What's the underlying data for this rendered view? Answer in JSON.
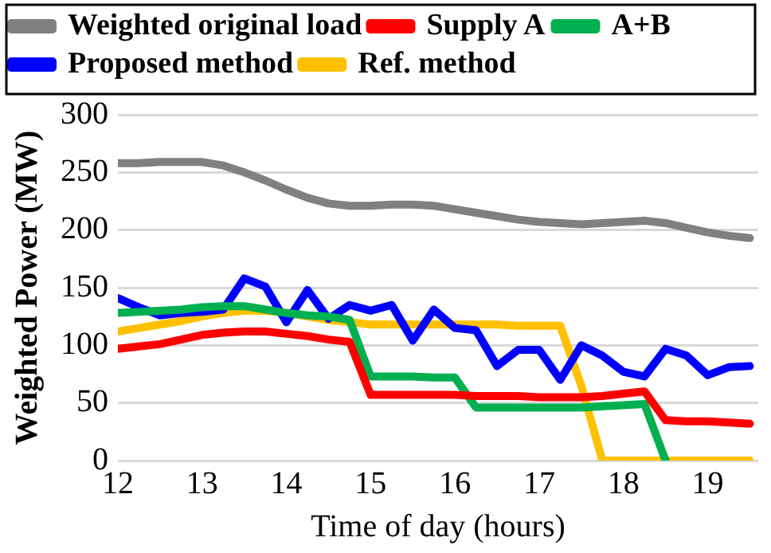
{
  "chart_data": {
    "type": "line",
    "xlabel": "Time of day (hours)",
    "ylabel": "Weighted Power (MW)",
    "x": [
      12,
      12.25,
      12.5,
      12.75,
      13,
      13.25,
      13.5,
      13.75,
      14,
      14.25,
      14.5,
      14.75,
      15,
      15.25,
      15.5,
      15.75,
      16,
      16.25,
      16.5,
      16.75,
      17,
      17.25,
      17.5,
      17.75,
      18,
      18.25,
      18.5,
      18.75,
      19,
      19.25,
      19.5
    ],
    "xlim": [
      12,
      19.6
    ],
    "xticks": [
      12,
      13,
      14,
      15,
      16,
      17,
      18,
      19
    ],
    "ylim": [
      0,
      300
    ],
    "yticks": [
      0,
      50,
      100,
      150,
      200,
      250,
      300
    ],
    "grid": "y",
    "legend": "top",
    "marker": "none",
    "line_style": "solid",
    "series": [
      {
        "name": "Weighted original load",
        "color": "#808080",
        "values": [
          258,
          258,
          259,
          259,
          259,
          256,
          250,
          243,
          235,
          228,
          223,
          221,
          221,
          222,
          222,
          221,
          218,
          215,
          212,
          209,
          207,
          206,
          205,
          206,
          207,
          208,
          206,
          202,
          198,
          195,
          193
        ]
      },
      {
        "name": "Supply A",
        "color": "#ff0000",
        "values": [
          97,
          99,
          101,
          105,
          109,
          111,
          112,
          112,
          110,
          108,
          105,
          103,
          57,
          57,
          57,
          57,
          57,
          56,
          56,
          56,
          55,
          55,
          55,
          56,
          58,
          60,
          35,
          34,
          34,
          33,
          32
        ]
      },
      {
        "name": "A+B",
        "color": "#00b050",
        "values": [
          128,
          129,
          130,
          131,
          133,
          134,
          134,
          131,
          128,
          126,
          125,
          122,
          73,
          73,
          73,
          72,
          72,
          46,
          46,
          46,
          46,
          46,
          46,
          47,
          48,
          49,
          0,
          null,
          null,
          null,
          null
        ]
      },
      {
        "name": "Proposed method",
        "color": "#0000ff",
        "values": [
          141,
          133,
          126,
          128,
          129,
          131,
          158,
          151,
          120,
          148,
          123,
          135,
          130,
          135,
          104,
          131,
          115,
          113,
          82,
          96,
          96,
          70,
          100,
          91,
          77,
          73,
          97,
          91,
          74,
          81,
          82
        ]
      },
      {
        "name": "Ref. method",
        "color": "#ffc000",
        "values": [
          112,
          115,
          118,
          121,
          125,
          128,
          130,
          130,
          128,
          125,
          122,
          120,
          118,
          118,
          118,
          118,
          118,
          118,
          118,
          117,
          117,
          117,
          65,
          0,
          0,
          0,
          0,
          0,
          0,
          0,
          0
        ]
      }
    ]
  }
}
